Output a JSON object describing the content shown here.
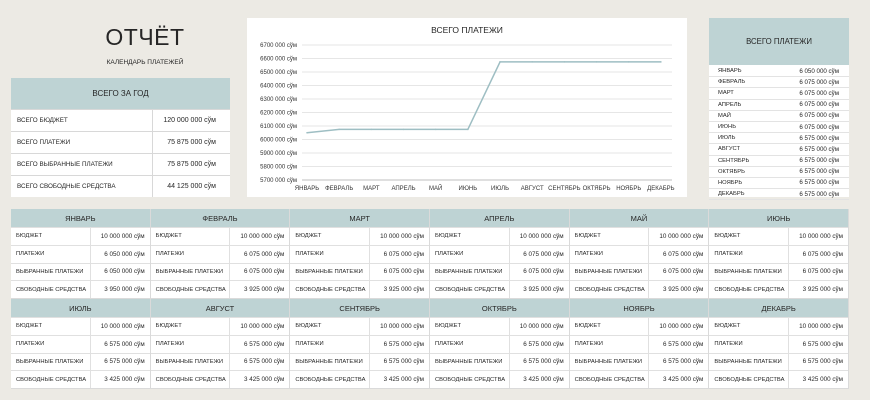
{
  "title": "ОТЧЁТ",
  "subtitle": "КАЛЕНДАРЬ ПЛАТЕЖЕЙ",
  "year_summary": {
    "header": "ВСЕГО ЗА ГОД",
    "rows": [
      {
        "label": "ВСЕГО БЮДЖЕТ",
        "value": "120 000 000 сўм"
      },
      {
        "label": "ВСЕГО ПЛАТЕЖИ",
        "value": "75 875 000 сўм"
      },
      {
        "label": "ВСЕГО ВЫБРАННЫЕ ПЛАТЕЖИ",
        "value": "75 875 000 сўм"
      },
      {
        "label": "ВСЕГО СВОБОДНЫЕ СРЕДСТВА",
        "value": "44 125 000 сўм"
      }
    ]
  },
  "chart_data": {
    "type": "line",
    "title": "ВСЕГО ПЛАТЕЖИ",
    "categories": [
      "ЯНВАРЬ",
      "ФЕВРАЛЬ",
      "МАРТ",
      "АПРЕЛЬ",
      "МАЙ",
      "ИЮНЬ",
      "ИЮЛЬ",
      "АВГУСТ",
      "СЕНТЯБРЬ",
      "ОКТЯБРЬ",
      "НОЯБРЬ",
      "ДЕКАБРЬ"
    ],
    "values": [
      6050000,
      6075000,
      6075000,
      6075000,
      6075000,
      6075000,
      6575000,
      6575000,
      6575000,
      6575000,
      6575000,
      6575000
    ],
    "ylim": [
      5700000,
      6700000
    ],
    "yticks": [
      5700000,
      5800000,
      5900000,
      6000000,
      6100000,
      6200000,
      6300000,
      6400000,
      6500000,
      6600000,
      6700000
    ],
    "ytick_labels": [
      "5700 000 сўм",
      "5800 000 сўм",
      "5900 000 сўм",
      "6000 000 сўм",
      "6100 000 сўм",
      "6200 000 сўм",
      "6300 000 сўм",
      "6400 000 сўм",
      "6500 000 сўм",
      "6600 000 сўм",
      "6700 000 сўм"
    ],
    "grid": true,
    "line_color": "#9EBEC3"
  },
  "monthly_totals": {
    "header": "ВСЕГО ПЛАТЕЖИ",
    "rows": [
      {
        "month": "ЯНВАРЬ",
        "value": "6 050 000 сўм"
      },
      {
        "month": "ФЕВРАЛЬ",
        "value": "6 075 000 сўм"
      },
      {
        "month": "МАРТ",
        "value": "6 075 000 сўм"
      },
      {
        "month": "АПРЕЛЬ",
        "value": "6 075 000 сўм"
      },
      {
        "month": "МАЙ",
        "value": "6 075 000 сўм"
      },
      {
        "month": "ИЮНЬ",
        "value": "6 075 000 сўм"
      },
      {
        "month": "ИЮЛЬ",
        "value": "6 575 000 сўм"
      },
      {
        "month": "АВГУСТ",
        "value": "6 575 000 сўм"
      },
      {
        "month": "СЕНТЯБРЬ",
        "value": "6 575 000 сўм"
      },
      {
        "month": "ОКТЯБРЬ",
        "value": "6 575 000 сўм"
      },
      {
        "month": "НОЯБРЬ",
        "value": "6 575 000 сўм"
      },
      {
        "month": "ДЕКАБРЬ",
        "value": "6 575 000 сўм"
      }
    ]
  },
  "months": [
    {
      "name": "ЯНВАРЬ",
      "rows": [
        {
          "label": "БЮДЖЕТ",
          "value": "10 000 000 сўм"
        },
        {
          "label": "ПЛАТЕЖИ",
          "value": "6 050 000 сўм"
        },
        {
          "label": "ВЫБРАННЫЕ ПЛАТЕЖИ",
          "value": "6 050 000 сўм"
        },
        {
          "label": "СВОБОДНЫЕ СРЕДСТВА",
          "value": "3 950 000 сўм"
        }
      ]
    },
    {
      "name": "ФЕВРАЛЬ",
      "rows": [
        {
          "label": "БЮДЖЕТ",
          "value": "10 000 000 сўм"
        },
        {
          "label": "ПЛАТЕЖИ",
          "value": "6 075 000 сўм"
        },
        {
          "label": "ВЫБРАННЫЕ ПЛАТЕЖИ",
          "value": "6 075 000 сўм"
        },
        {
          "label": "СВОБОДНЫЕ СРЕДСТВА",
          "value": "3 925 000 сўм"
        }
      ]
    },
    {
      "name": "МАРТ",
      "rows": [
        {
          "label": "БЮДЖЕТ",
          "value": "10 000 000 сўм"
        },
        {
          "label": "ПЛАТЕЖИ",
          "value": "6 075 000 сўм"
        },
        {
          "label": "ВЫБРАННЫЕ ПЛАТЕЖИ",
          "value": "6 075 000 сўм"
        },
        {
          "label": "СВОБОДНЫЕ СРЕДСТВА",
          "value": "3 925 000 сўм"
        }
      ]
    },
    {
      "name": "АПРЕЛЬ",
      "rows": [
        {
          "label": "БЮДЖЕТ",
          "value": "10 000 000 сўм"
        },
        {
          "label": "ПЛАТЕЖИ",
          "value": "6 075 000 сўм"
        },
        {
          "label": "ВЫБРАННЫЕ ПЛАТЕЖИ",
          "value": "6 075 000 сўм"
        },
        {
          "label": "СВОБОДНЫЕ СРЕДСТВА",
          "value": "3 925 000 сўм"
        }
      ]
    },
    {
      "name": "МАЙ",
      "rows": [
        {
          "label": "БЮДЖЕТ",
          "value": "10 000 000 сўм"
        },
        {
          "label": "ПЛАТЕЖИ",
          "value": "6 075 000 сўм"
        },
        {
          "label": "ВЫБРАННЫЕ ПЛАТЕЖИ",
          "value": "6 075 000 сўм"
        },
        {
          "label": "СВОБОДНЫЕ СРЕДСТВА",
          "value": "3 925 000 сўм"
        }
      ]
    },
    {
      "name": "ИЮНЬ",
      "rows": [
        {
          "label": "БЮДЖЕТ",
          "value": "10 000 000 сўм"
        },
        {
          "label": "ПЛАТЕЖИ",
          "value": "6 075 000 сўм"
        },
        {
          "label": "ВЫБРАННЫЕ ПЛАТЕЖИ",
          "value": "6 075 000 сўм"
        },
        {
          "label": "СВОБОДНЫЕ СРЕДСТВА",
          "value": "3 925 000 сўм"
        }
      ]
    },
    {
      "name": "ИЮЛЬ",
      "rows": [
        {
          "label": "БЮДЖЕТ",
          "value": "10 000 000 сўм"
        },
        {
          "label": "ПЛАТЕЖИ",
          "value": "6 575 000 сўм"
        },
        {
          "label": "ВЫБРАННЫЕ ПЛАТЕЖИ",
          "value": "6 575 000 сўм"
        },
        {
          "label": "СВОБОДНЫЕ СРЕДСТВА",
          "value": "3 425 000 сўм"
        }
      ]
    },
    {
      "name": "АВГУСТ",
      "rows": [
        {
          "label": "БЮДЖЕТ",
          "value": "10 000 000 сўм"
        },
        {
          "label": "ПЛАТЕЖИ",
          "value": "6 575 000 сўм"
        },
        {
          "label": "ВЫБРАННЫЕ ПЛАТЕЖИ",
          "value": "6 575 000 сўм"
        },
        {
          "label": "СВОБОДНЫЕ СРЕДСТВА",
          "value": "3 425 000 сўм"
        }
      ]
    },
    {
      "name": "СЕНТЯБРЬ",
      "rows": [
        {
          "label": "БЮДЖЕТ",
          "value": "10 000 000 сўм"
        },
        {
          "label": "ПЛАТЕЖИ",
          "value": "6 575 000 сўм"
        },
        {
          "label": "ВЫБРАННЫЕ ПЛАТЕЖИ",
          "value": "6 575 000 сўм"
        },
        {
          "label": "СВОБОДНЫЕ СРЕДСТВА",
          "value": "3 425 000 сўм"
        }
      ]
    },
    {
      "name": "ОКТЯБРЬ",
      "rows": [
        {
          "label": "БЮДЖЕТ",
          "value": "10 000 000 сўм"
        },
        {
          "label": "ПЛАТЕЖИ",
          "value": "6 575 000 сўм"
        },
        {
          "label": "ВЫБРАННЫЕ ПЛАТЕЖИ",
          "value": "6 575 000 сўм"
        },
        {
          "label": "СВОБОДНЫЕ СРЕДСТВА",
          "value": "3 425 000 сўм"
        }
      ]
    },
    {
      "name": "НОЯБРЬ",
      "rows": [
        {
          "label": "БЮДЖЕТ",
          "value": "10 000 000 сўм"
        },
        {
          "label": "ПЛАТЕЖИ",
          "value": "6 575 000 сўм"
        },
        {
          "label": "ВЫБРАННЫЕ ПЛАТЕЖИ",
          "value": "6 575 000 сўм"
        },
        {
          "label": "СВОБОДНЫЕ СРЕДСТВА",
          "value": "3 425 000 сўм"
        }
      ]
    },
    {
      "name": "ДЕКАБРЬ",
      "rows": [
        {
          "label": "БЮДЖЕТ",
          "value": "10 000 000 сўм"
        },
        {
          "label": "ПЛАТЕЖИ",
          "value": "6 575 000 сўм"
        },
        {
          "label": "ВЫБРАННЫЕ ПЛАТЕЖИ",
          "value": "6 575 000 сўм"
        },
        {
          "label": "СВОБОДНЫЕ СРЕДСТВА",
          "value": "3 425 000 сўм"
        }
      ]
    }
  ]
}
